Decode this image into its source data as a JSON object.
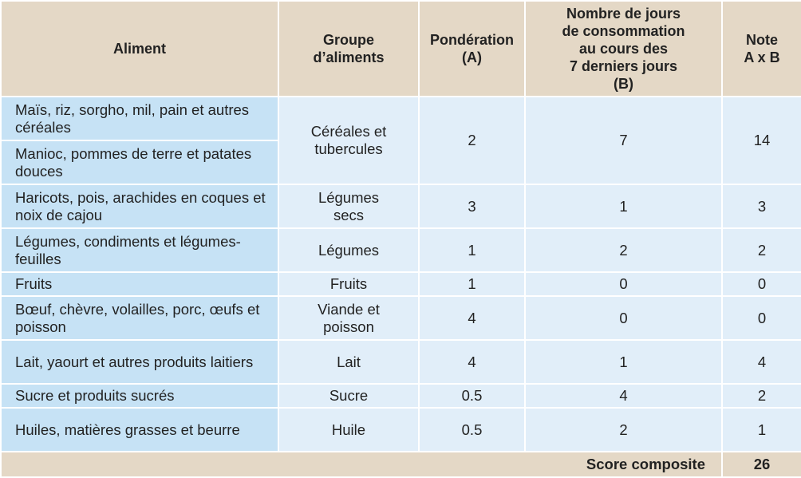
{
  "headers": {
    "food": "Aliment",
    "group": "Groupe\nd’aliments",
    "weight": "Pondération\n(A)",
    "days": "Nombre de jours\nde consommation\nau cours des\n7 derniers jours\n(B)",
    "score": "Note\nA x B"
  },
  "rows": [
    {
      "food": "Maïs, riz, sorgho, mil, pain et autres céréales",
      "group": "Céréales et\ntubercules",
      "weight": "2",
      "days": "7",
      "score": "14"
    },
    {
      "food": "Manioc, pommes de terre et patates douces"
    },
    {
      "food": "Haricots, pois, arachides en coques et noix de cajou",
      "group": "Légumes\nsecs",
      "weight": "3",
      "days": "1",
      "score": "3"
    },
    {
      "food": "Légumes, condiments et légumes-feuilles",
      "group": "Légumes",
      "weight": "1",
      "days": "2",
      "score": "2"
    },
    {
      "food": "Fruits",
      "group": "Fruits",
      "weight": "1",
      "days": "0",
      "score": "0"
    },
    {
      "food": "Bœuf, chèvre, volailles, porc, œufs et poisson",
      "group": "Viande et\npoisson",
      "weight": "4",
      "days": "0",
      "score": "0"
    },
    {
      "food": "Lait, yaourt et autres produits laitiers",
      "group": "Lait",
      "weight": "4",
      "days": "1",
      "score": "4"
    },
    {
      "food": "Sucre et produits sucrés",
      "group": "Sucre",
      "weight": "0.5",
      "days": "4",
      "score": "2"
    },
    {
      "food": "Huiles, matières grasses et beurre",
      "group": "Huile",
      "weight": "0.5",
      "days": "2",
      "score": "1"
    }
  ],
  "footer": {
    "label": "Score composite",
    "total": "26"
  },
  "colors": {
    "header_bg": "#e4d8c6",
    "food_col_bg": "#c6e2f5",
    "cell_bg": "#e1eef9"
  }
}
